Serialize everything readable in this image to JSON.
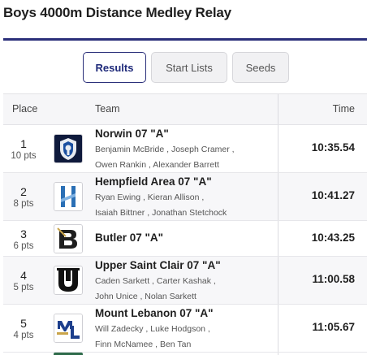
{
  "page_title": "Boys 4000m Distance Medley Relay",
  "tabs": [
    {
      "label": "Results",
      "active": true
    },
    {
      "label": "Start Lists",
      "active": false
    },
    {
      "label": "Seeds",
      "active": false
    }
  ],
  "table": {
    "headers": {
      "place": "Place",
      "team": "Team",
      "time": "Time"
    },
    "rows": [
      {
        "place": "1",
        "pts": "10 pts",
        "team": "Norwin 07 \"A\"",
        "logo_icon": "norwin-knight-logo-icon",
        "runners_line1": [
          "Benjamin McBride",
          "Joseph Cramer"
        ],
        "runners_line2": [
          "Owen Rankin",
          "Alexander Barrett"
        ],
        "time": "10:35.54"
      },
      {
        "place": "2",
        "pts": "8 pts",
        "team": "Hempfield Area 07 \"A\"",
        "logo_icon": "hempfield-h-logo-icon",
        "runners_line1": [
          "Ryan Ewing",
          "Kieran Allison"
        ],
        "runners_line2": [
          "Isaiah Bittner",
          "Jonathan Stetchock"
        ],
        "time": "10:41.27"
      },
      {
        "place": "3",
        "pts": "6 pts",
        "team": "Butler 07 \"A\"",
        "logo_icon": "butler-b-logo-icon",
        "runners_line1": [],
        "runners_line2": [],
        "time": "10:43.25"
      },
      {
        "place": "4",
        "pts": "5 pts",
        "team": "Upper Saint Clair 07 \"A\"",
        "logo_icon": "usc-logo-icon",
        "runners_line1": [
          "Caden Sarkett",
          "Carter Kashak"
        ],
        "runners_line2": [
          "John Unice",
          "Nolan Sarkett"
        ],
        "time": "11:00.58"
      },
      {
        "place": "5",
        "pts": "4 pts",
        "team": "Mount Lebanon 07 \"A\"",
        "logo_icon": "mt-lebanon-ml-logo-icon",
        "runners_line1": [
          "Will Zadecky",
          "Luke Hodgson"
        ],
        "runners_line2": [
          "Finn McNamee",
          "Ben Tan"
        ],
        "time": "11:05.67"
      }
    ]
  },
  "colors": {
    "accent": "#2a2f7a",
    "header_bg": "#f6f6f8",
    "alt_row_bg": "#f7f7f9"
  }
}
